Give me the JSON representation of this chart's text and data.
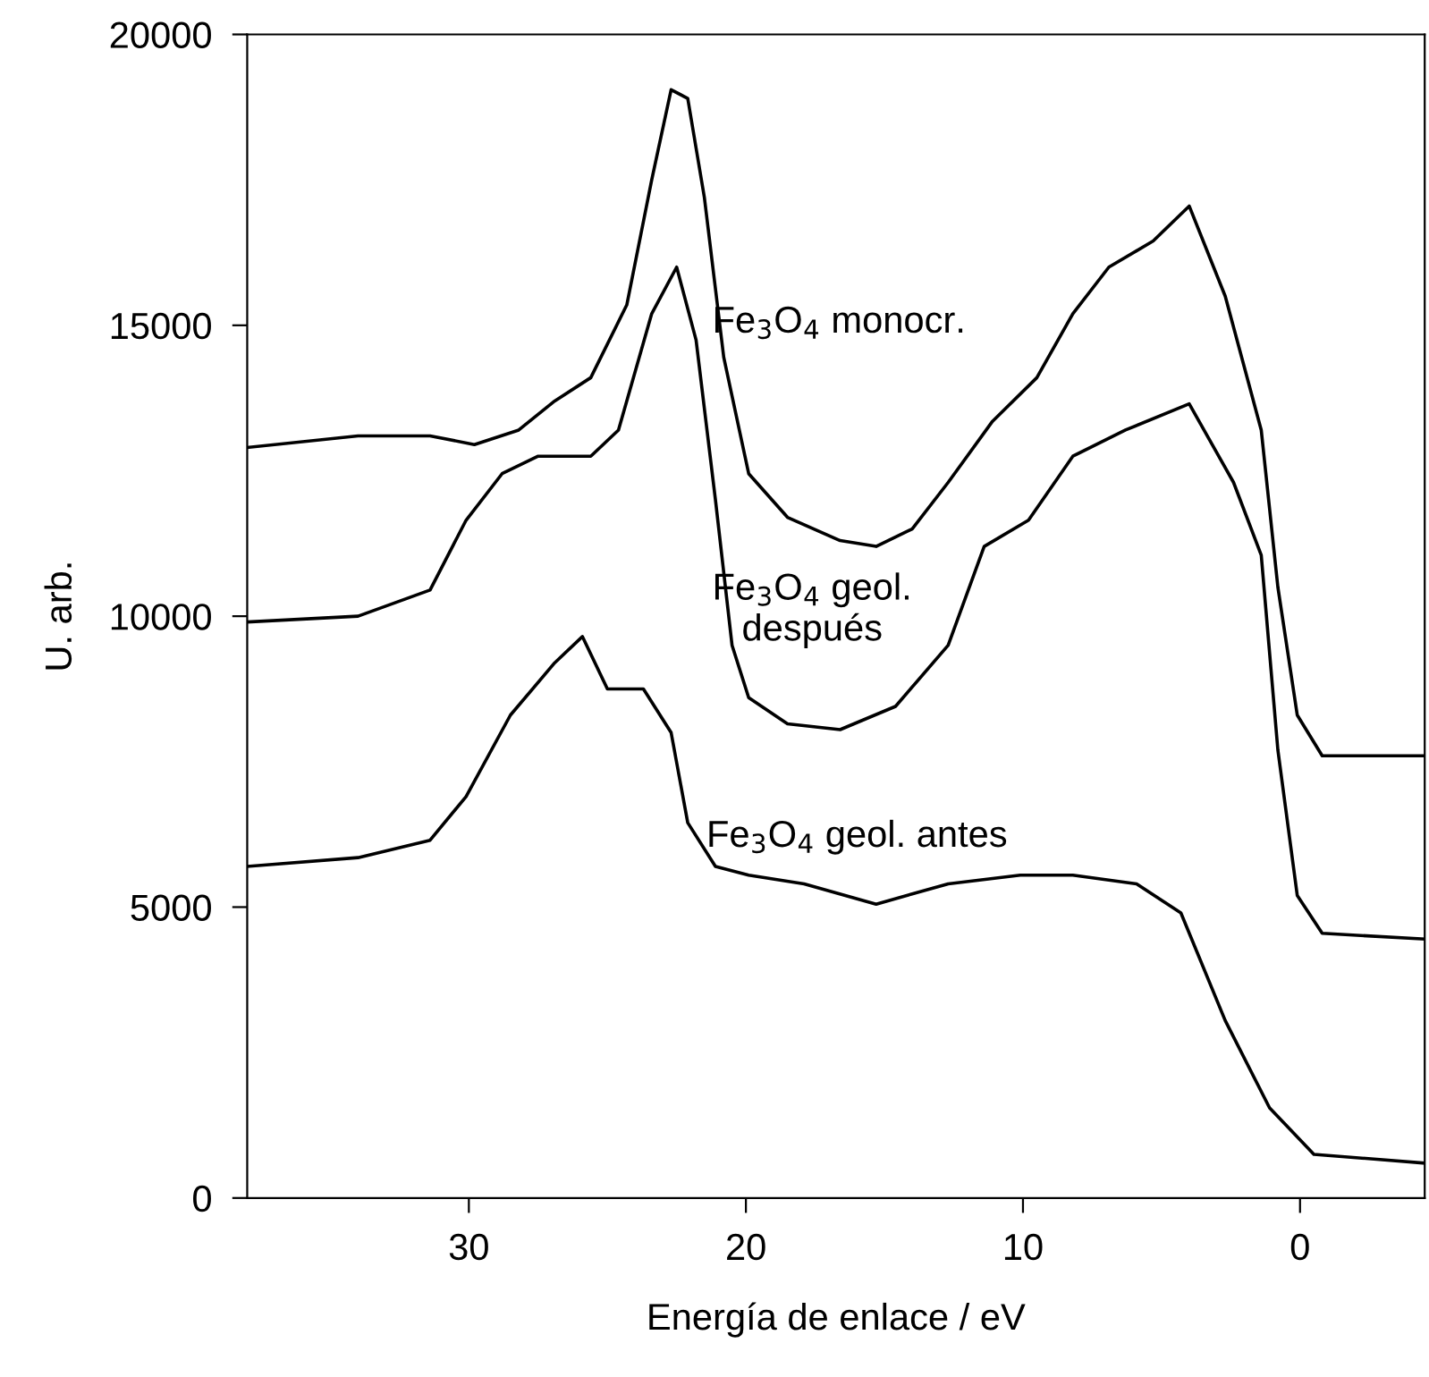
{
  "chart_data": {
    "type": "line",
    "xlabel": "Energía de enlace / eV",
    "ylabel": "U. arb.",
    "xlim": [
      38,
      -4.5
    ],
    "xticks": [
      30,
      20,
      10,
      0
    ],
    "ylim": [
      0,
      20000
    ],
    "yticks": [
      0,
      5000,
      10000,
      15000,
      20000
    ],
    "grid": false,
    "marker": "none",
    "line_style": "solid",
    "series": [
      {
        "color": "#000000",
        "x": [
          38,
          34,
          31.4,
          29.8,
          28.2,
          26.9,
          25.6,
          24.3,
          23.4,
          22.7,
          22.1,
          21.5,
          20.8,
          19.9,
          18.5,
          16.6,
          15.3,
          14.0,
          12.7,
          11.1,
          9.5,
          8.2,
          6.9,
          5.3,
          4.0,
          2.7,
          1.4,
          0.8,
          0.1,
          -0.8,
          -4.5
        ],
        "values": [
          12900,
          13100,
          13100,
          12950,
          13200,
          13700,
          14100,
          15350,
          17500,
          19050,
          18900,
          17200,
          14450,
          12450,
          11700,
          11300,
          11200,
          11500,
          12300,
          13350,
          14100,
          15200,
          16000,
          16450,
          17050,
          15500,
          13200,
          10500,
          8300,
          7600,
          7600
        ]
      },
      {
        "color": "#000000",
        "x": [
          38,
          34,
          31.4,
          30.1,
          28.8,
          27.5,
          25.6,
          24.6,
          23.4,
          22.5,
          21.8,
          21.1,
          20.5,
          19.9,
          18.5,
          16.6,
          14.6,
          12.7,
          11.4,
          9.8,
          8.2,
          6.3,
          4.0,
          2.4,
          1.4,
          0.8,
          0.1,
          -0.8,
          -4.5
        ],
        "values": [
          9900,
          10000,
          10450,
          11650,
          12450,
          12750,
          12750,
          13200,
          15200,
          16000,
          14750,
          12000,
          9500,
          8600,
          8150,
          8050,
          8450,
          9500,
          11200,
          11650,
          12750,
          13200,
          13650,
          12300,
          11050,
          7700,
          5200,
          4550,
          4450
        ]
      },
      {
        "color": "#000000",
        "x": [
          38,
          34,
          31.4,
          30.1,
          28.5,
          26.9,
          25.9,
          25.0,
          23.7,
          22.7,
          22.1,
          21.1,
          19.9,
          17.9,
          15.3,
          12.7,
          10.1,
          8.2,
          5.9,
          4.3,
          2.7,
          1.1,
          -0.5,
          -4.5
        ],
        "values": [
          5700,
          5850,
          6150,
          6900,
          8300,
          9200,
          9650,
          8750,
          8750,
          8000,
          6450,
          5700,
          5550,
          5400,
          5050,
          5400,
          5550,
          5550,
          5400,
          4900,
          3050,
          1550,
          750,
          600
        ]
      }
    ],
    "annotations": [
      "Fe$_{3}$O$_{4}$ monocr.",
      "Fe$_{3}$O$_{4}$ geol.\ndespués",
      "Fe$_{3}$O$_{4}$ geol. antes"
    ]
  }
}
